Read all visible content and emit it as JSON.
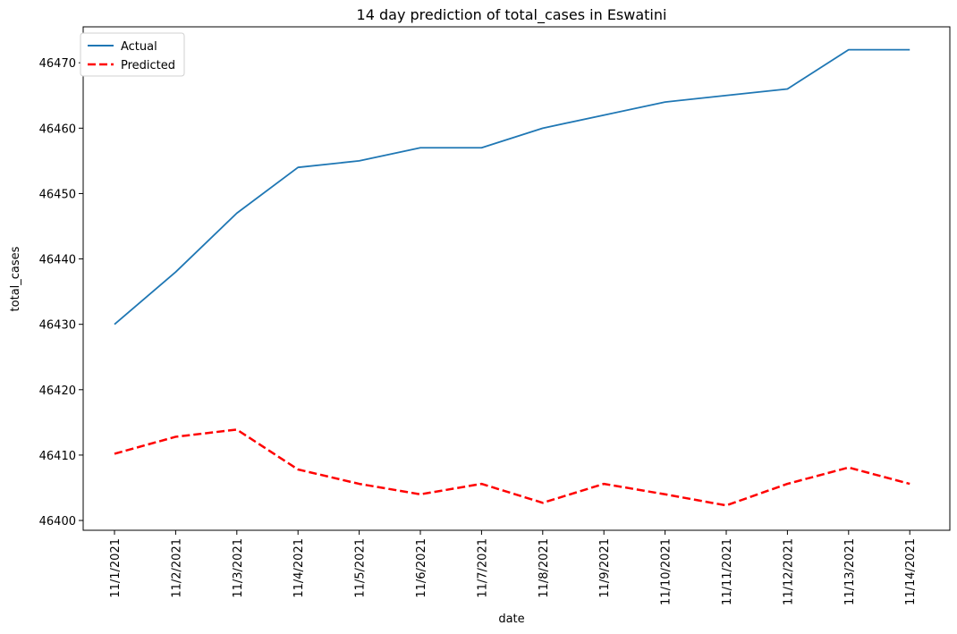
{
  "chart_data": {
    "type": "line",
    "title": "14 day prediction of total_cases in Eswatini",
    "xlabel": "date",
    "ylabel": "total_cases",
    "x": [
      "11/1/2021",
      "11/2/2021",
      "11/3/2021",
      "11/4/2021",
      "11/5/2021",
      "11/6/2021",
      "11/7/2021",
      "11/8/2021",
      "11/9/2021",
      "11/10/2021",
      "11/11/2021",
      "11/12/2021",
      "11/13/2021",
      "11/14/2021"
    ],
    "yticks": [
      46400,
      46410,
      46420,
      46430,
      46440,
      46450,
      46460,
      46470
    ],
    "ylim": [
      46398.5,
      46475.5
    ],
    "grid": false,
    "legend_position": "top-left",
    "series": [
      {
        "name": "Actual",
        "color": "#1f77b4",
        "style": "solid",
        "values": [
          46430,
          46438,
          46447,
          46454,
          46455,
          46457,
          46457,
          46460,
          46462,
          46464,
          46465,
          46466,
          46472,
          46472
        ]
      },
      {
        "name": "Predicted",
        "color": "#ff0000",
        "style": "dashed",
        "values": [
          46410.2,
          46412.8,
          46413.9,
          46407.8,
          46405.6,
          46404.0,
          46405.6,
          46402.7,
          46405.6,
          46404.0,
          46402.3,
          46405.6,
          46408.1,
          46405.6
        ]
      }
    ]
  }
}
